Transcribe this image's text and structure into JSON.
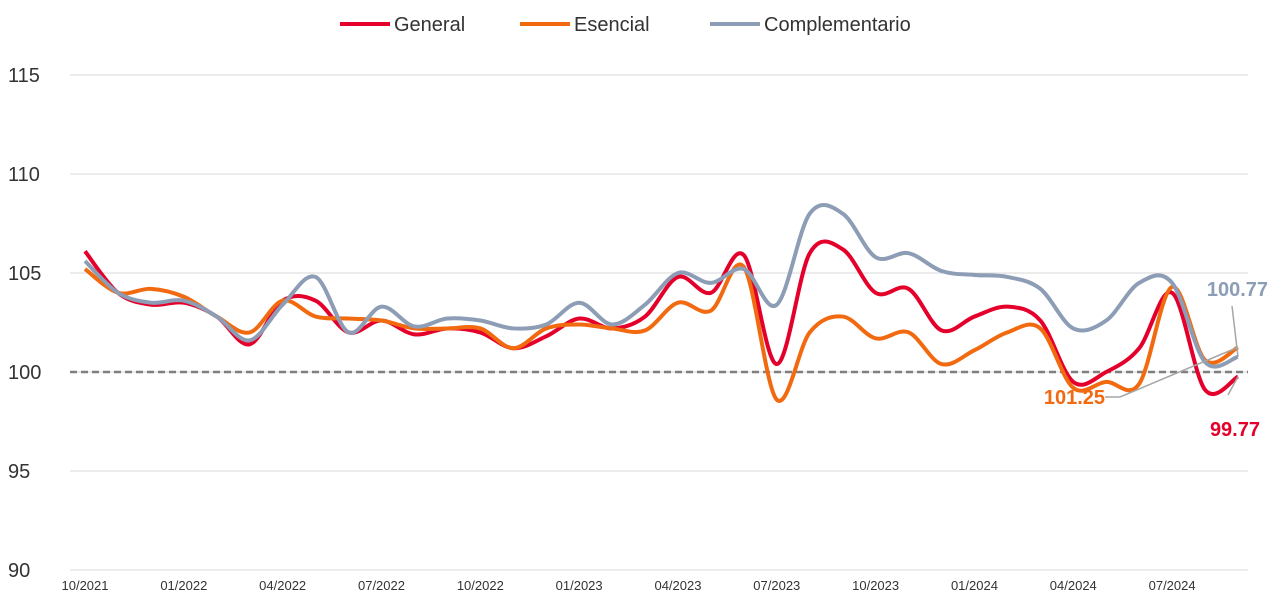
{
  "chart_data": {
    "type": "line",
    "categories": [
      "10/2021",
      null,
      null,
      "01/2022",
      null,
      null,
      "04/2022",
      null,
      null,
      "07/2022",
      null,
      null,
      "10/2022",
      null,
      null,
      "01/2023",
      null,
      null,
      "04/2023",
      null,
      null,
      "07/2023",
      null,
      null,
      "10/2023",
      null,
      null,
      "01/2024",
      null,
      null,
      "04/2024",
      null,
      null,
      "07/2024",
      null,
      null
    ],
    "series": [
      {
        "name": "General",
        "color": "#e4002b",
        "values": [
          106.1,
          104,
          103.4,
          103.5,
          102.8,
          101.4,
          103.6,
          103.6,
          102,
          102.6,
          101.9,
          102.2,
          102,
          101.2,
          101.8,
          102.7,
          102.2,
          102.8,
          104.8,
          104,
          105.9,
          100.4,
          106,
          106.2,
          104,
          104.2,
          102.1,
          102.8,
          103.3,
          102.6,
          99.5,
          100,
          101.2,
          104,
          99.1,
          99.77
        ]
      },
      {
        "name": "Esencial",
        "color": "#f26a10",
        "values": [
          105.2,
          104,
          104.2,
          103.8,
          102.8,
          102,
          103.6,
          102.8,
          102.7,
          102.6,
          102.2,
          102.2,
          102.2,
          101.2,
          102.2,
          102.4,
          102.2,
          102.1,
          103.5,
          103.1,
          105.3,
          98.6,
          102,
          102.8,
          101.7,
          102,
          100.4,
          101.1,
          102,
          102.2,
          99.2,
          99.5,
          99.4,
          104.3,
          100.6,
          101.25
        ]
      },
      {
        "name": "Complementario",
        "color": "#8c9db5",
        "values": [
          105.6,
          104,
          103.5,
          103.6,
          102.8,
          101.6,
          103.4,
          104.8,
          102,
          103.3,
          102.3,
          102.7,
          102.6,
          102.2,
          102.4,
          103.5,
          102.4,
          103.4,
          105,
          104.5,
          105.2,
          103.4,
          108,
          108,
          105.8,
          106,
          105.1,
          104.9,
          104.8,
          104.2,
          102.2,
          102.6,
          104.5,
          104.5,
          100.5,
          100.77
        ]
      }
    ],
    "ylim": [
      90,
      115
    ],
    "yticks": [
      90,
      95,
      100,
      105,
      110,
      115
    ],
    "grid": true,
    "reference_line": 100
  }
}
